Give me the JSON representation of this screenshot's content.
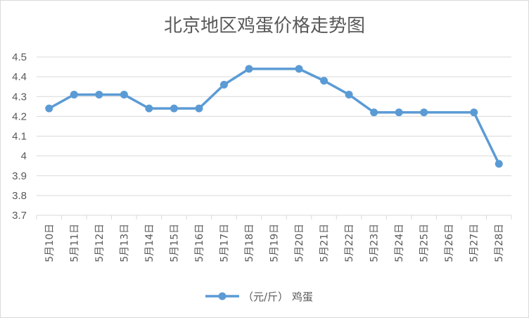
{
  "chart_data": {
    "type": "line",
    "title": "北京地区鸡蛋价格走势图",
    "categories": [
      "5月10日",
      "5月11日",
      "5月12日",
      "5月13日",
      "5月14日",
      "5月15日",
      "5月16日",
      "5月17日",
      "5月18日",
      "5月19日",
      "5月20日",
      "5月21日",
      "5月22日",
      "5月23日",
      "5月24日",
      "5月25日",
      "5月26日",
      "5月27日",
      "5月28日"
    ],
    "y_ticks": [
      "4.5",
      "4.4",
      "4.3",
      "4.2",
      "4.1",
      "4",
      "3.9",
      "3.8",
      "3.7"
    ],
    "ylim": [
      3.7,
      4.5
    ],
    "series": [
      {
        "name": "（元/斤） 鸡蛋",
        "color": "#5b9bd5",
        "values": [
          4.24,
          4.31,
          4.31,
          4.31,
          4.24,
          4.24,
          4.24,
          4.36,
          4.44,
          4.44,
          4.44,
          4.38,
          4.31,
          4.22,
          4.22,
          4.22,
          4.22,
          4.22,
          3.96
        ],
        "markers": [
          true,
          true,
          true,
          true,
          true,
          true,
          true,
          true,
          true,
          false,
          true,
          true,
          true,
          true,
          true,
          true,
          false,
          true,
          true
        ]
      }
    ],
    "grid": true,
    "legend_position": "bottom",
    "gridline_color": "#d9d9d9",
    "axis_text_color": "#595959"
  }
}
